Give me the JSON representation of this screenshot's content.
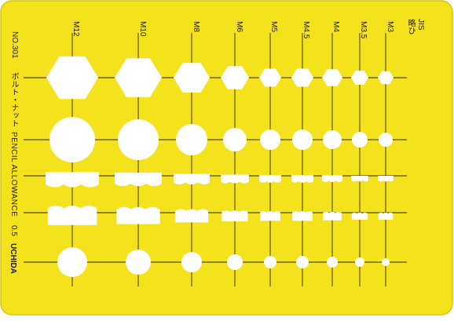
{
  "template": {
    "model_number": "NO.301",
    "title_jp": "ボルト・ナット",
    "title_en": "PENCIL ALLOWANCE",
    "allowance": "0.5",
    "brand": "UCHIDA",
    "standard": "JIS",
    "standard_note": "略ひ",
    "sizes": [
      "M12",
      "M10",
      "M8",
      "M6",
      "M5",
      "M4.5",
      "M4",
      "M3.5",
      "M3"
    ]
  },
  "colors": {
    "plate": "#f4e31c",
    "plate_edge": "#d7c510",
    "cutout": "#ffffff",
    "line": "#2b2510"
  }
}
